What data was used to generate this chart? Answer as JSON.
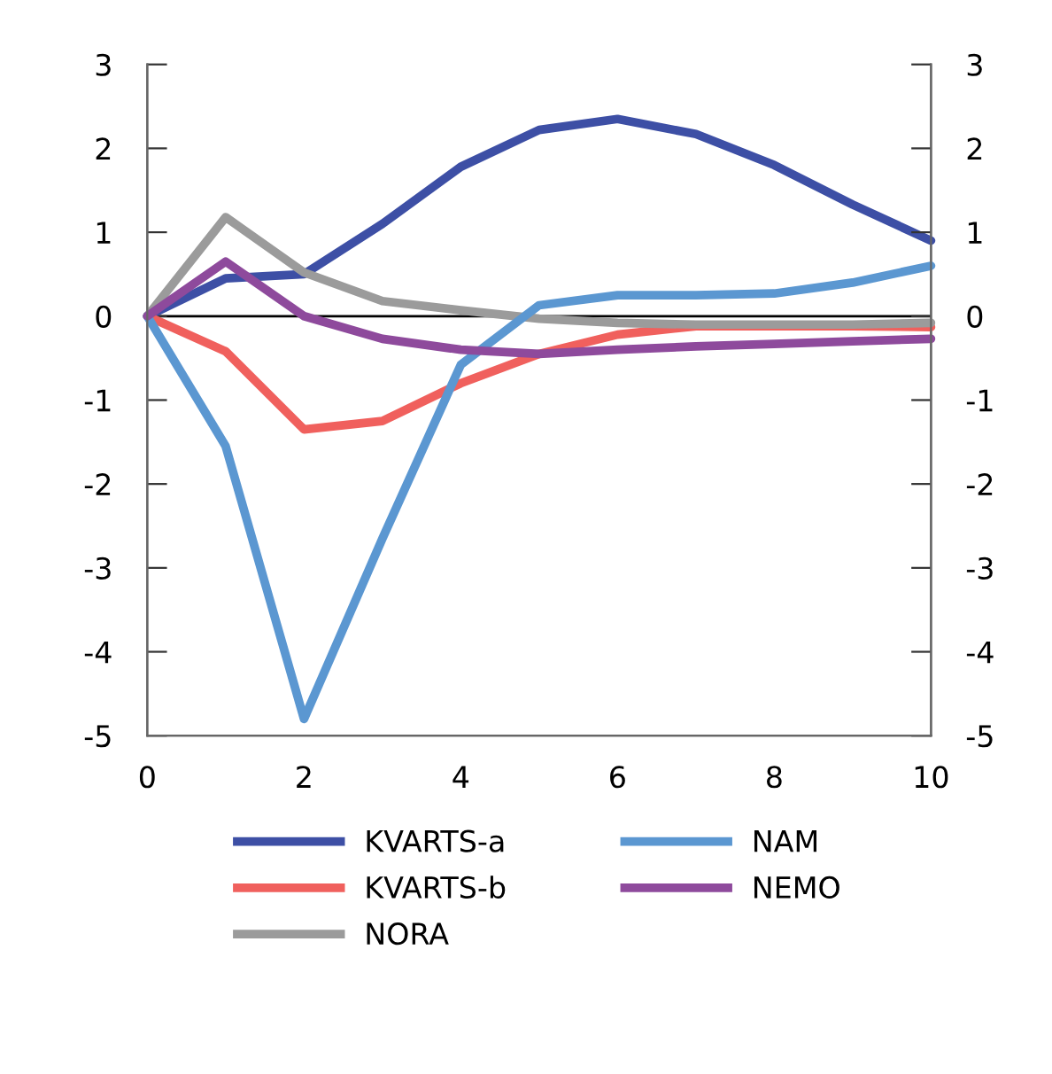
{
  "chart_data": {
    "type": "line",
    "x": [
      0,
      1,
      2,
      3,
      4,
      5,
      6,
      7,
      8,
      9,
      10
    ],
    "series": [
      {
        "name": "KVARTS-a",
        "color": "#3d4fa5",
        "values": [
          0,
          0.45,
          0.5,
          1.1,
          1.78,
          2.22,
          2.35,
          2.17,
          1.8,
          1.33,
          0.9
        ]
      },
      {
        "name": "KVARTS-b",
        "color": "#f0605d",
        "values": [
          0,
          -0.42,
          -1.35,
          -1.25,
          -0.8,
          -0.45,
          -0.22,
          -0.12,
          -0.12,
          -0.12,
          -0.13
        ]
      },
      {
        "name": "NORA",
        "color": "#9b9b9b",
        "values": [
          0,
          1.18,
          0.52,
          0.18,
          0.07,
          -0.03,
          -0.08,
          -0.1,
          -0.1,
          -0.1,
          -0.08
        ]
      },
      {
        "name": "NAM",
        "color": "#5b97d1",
        "values": [
          0,
          -1.55,
          -4.8,
          -2.65,
          -0.58,
          0.13,
          0.25,
          0.25,
          0.27,
          0.4,
          0.6
        ]
      },
      {
        "name": "NEMO",
        "color": "#8e4a9c",
        "values": [
          0,
          0.65,
          0.0,
          -0.27,
          -0.4,
          -0.45,
          -0.4,
          -0.36,
          -0.33,
          -0.3,
          -0.27
        ]
      }
    ],
    "xlim": [
      0,
      10
    ],
    "xticks": [
      0,
      2,
      4,
      6,
      8,
      10
    ],
    "ylim": [
      -5,
      3
    ],
    "yticks": [
      -5,
      -4,
      -3,
      -2,
      -1,
      0,
      1,
      2,
      3
    ],
    "y2lim": [
      -5,
      3
    ],
    "y2ticks": [
      -5,
      -4,
      -3,
      -2,
      -1,
      0,
      1,
      2,
      3
    ],
    "ref_lines": [
      {
        "axis": "y",
        "value": 0,
        "color": "#000000"
      }
    ],
    "grid": false,
    "legend": "bottom",
    "marker": "none",
    "line_style": "solid"
  }
}
